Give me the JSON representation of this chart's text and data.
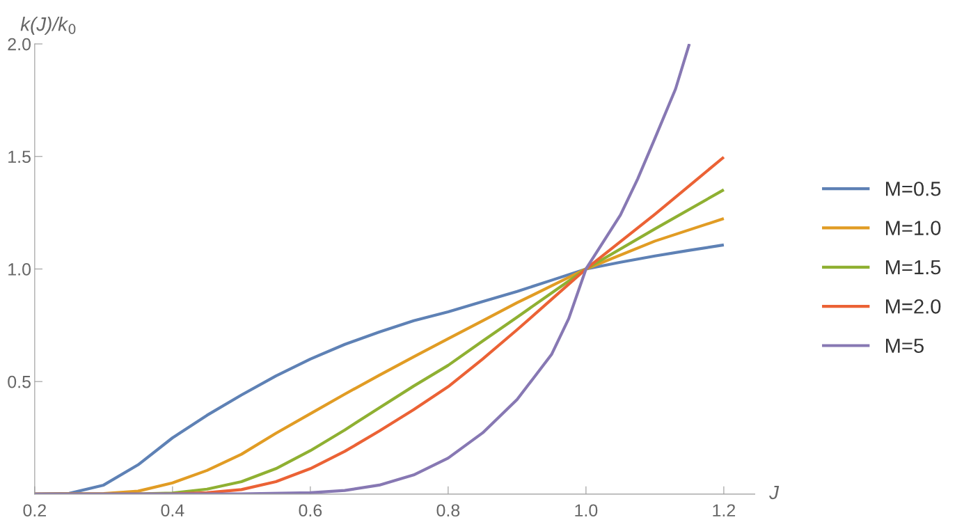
{
  "chart_data": {
    "type": "line",
    "xlabel": "J",
    "ylabel": "k(J)/k$_{0}$",
    "xlim": [
      0.2,
      1.245
    ],
    "ylim": [
      0,
      2.0
    ],
    "xticks": [
      0.2,
      0.4,
      0.6,
      0.8,
      {
        "value": 1,
        "label": "1.0"
      },
      1.2
    ],
    "yticks": [
      0.5,
      {
        "value": 1,
        "label": "1.0"
      },
      1.5,
      {
        "value": 2,
        "label": "2.0"
      }
    ],
    "grid": false,
    "legend": "right",
    "marker": "none",
    "line_style": "solid",
    "series": [
      {
        "name": "M=0.5",
        "color": "#5e81b5",
        "x": [
          0.2,
          0.25,
          0.3,
          0.35,
          0.4,
          0.45,
          0.5,
          0.55,
          0.6,
          0.65,
          0.7,
          0.75,
          0.8,
          0.85,
          0.9,
          0.95,
          1.0,
          1.05,
          1.1,
          1.15,
          1.2
        ],
        "values": [
          0,
          0.003,
          0.04,
          0.13,
          0.25,
          0.35,
          0.44,
          0.525,
          0.6,
          0.665,
          0.72,
          0.77,
          0.81,
          0.855,
          0.9,
          0.95,
          1.0,
          1.03,
          1.058,
          1.083,
          1.107
        ]
      },
      {
        "name": "M=1.0",
        "color": "#e19c24",
        "x": [
          0.2,
          0.3,
          0.35,
          0.4,
          0.45,
          0.5,
          0.55,
          0.6,
          0.65,
          0.7,
          0.75,
          0.8,
          0.85,
          0.9,
          0.95,
          1.0,
          1.1,
          1.2
        ],
        "values": [
          0,
          0.002,
          0.013,
          0.05,
          0.105,
          0.177,
          0.27,
          0.357,
          0.444,
          0.528,
          0.61,
          0.69,
          0.77,
          0.85,
          0.925,
          1.0,
          1.124,
          1.224
        ]
      },
      {
        "name": "M=1.5",
        "color": "#8fb032",
        "x": [
          0.2,
          0.35,
          0.4,
          0.45,
          0.5,
          0.55,
          0.6,
          0.65,
          0.7,
          0.75,
          0.8,
          0.85,
          0.9,
          0.95,
          1.0,
          1.1,
          1.2
        ],
        "values": [
          0,
          0.001,
          0.005,
          0.022,
          0.055,
          0.113,
          0.193,
          0.285,
          0.383,
          0.48,
          0.572,
          0.68,
          0.786,
          0.893,
          1.0,
          1.178,
          1.352
        ]
      },
      {
        "name": "M=2.0",
        "color": "#eb6235",
        "x": [
          0.2,
          0.4,
          0.45,
          0.5,
          0.55,
          0.6,
          0.65,
          0.7,
          0.75,
          0.8,
          0.85,
          0.9,
          0.95,
          1.0,
          1.1,
          1.2
        ],
        "values": [
          0,
          0.001,
          0.006,
          0.02,
          0.055,
          0.113,
          0.19,
          0.28,
          0.375,
          0.477,
          0.6,
          0.73,
          0.865,
          1.0,
          1.243,
          1.497
        ]
      },
      {
        "name": "M=5",
        "color": "#8778b3",
        "x": [
          0.2,
          0.5,
          0.6,
          0.65,
          0.7,
          0.75,
          0.8,
          0.85,
          0.9,
          0.95,
          0.975,
          1.0,
          1.05,
          1.075,
          1.1,
          1.13,
          1.15
        ],
        "values": [
          0,
          0.001,
          0.006,
          0.016,
          0.04,
          0.085,
          0.16,
          0.272,
          0.42,
          0.62,
          0.78,
          1.0,
          1.24,
          1.4,
          1.58,
          1.8,
          2.0
        ]
      }
    ]
  }
}
